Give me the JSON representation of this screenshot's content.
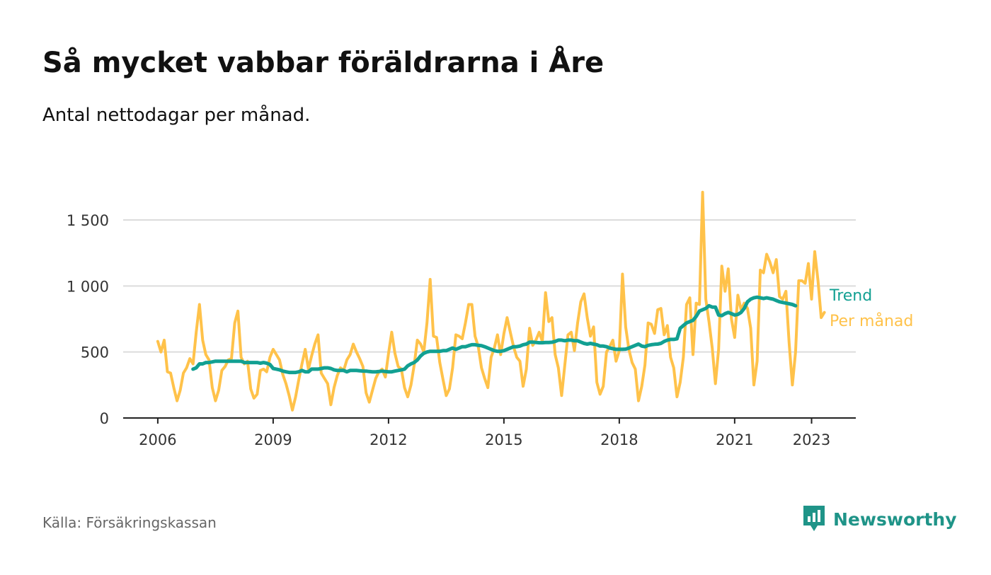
{
  "title": "Så mycket vabbar föräldrarna i Åre",
  "subtitle": "Antal nettodagar per månad.",
  "source": "Källa: Försäkringskassan",
  "brand": "Newsworthy",
  "colors": {
    "trend": "#12a092",
    "monthly": "#ffc24a",
    "grid": "#dcdcdc",
    "axis": "#222222",
    "brand": "#1f9488"
  },
  "chart_data": {
    "type": "line",
    "x_start": 2006.0,
    "x_step": 0.0833333,
    "xlim": [
      2005.1,
      2024.15
    ],
    "ylim": [
      0,
      1500
    ],
    "yticks": [
      0,
      500,
      1000,
      1500
    ],
    "ytick_labels": [
      "0",
      "500",
      "1 000",
      "1 500"
    ],
    "xticks": [
      2006,
      2009,
      2012,
      2015,
      2018,
      2021,
      2023
    ],
    "xtick_labels": [
      "2006",
      "2009",
      "2012",
      "2015",
      "2018",
      "2021",
      "2023"
    ],
    "series": [
      {
        "name": "Per månad",
        "start": 2006.0,
        "values": [
          580,
          500,
          590,
          350,
          340,
          230,
          130,
          210,
          340,
          380,
          450,
          410,
          650,
          860,
          590,
          480,
          440,
          230,
          130,
          210,
          360,
          390,
          440,
          450,
          720,
          810,
          460,
          410,
          430,
          220,
          150,
          180,
          360,
          370,
          350,
          460,
          520,
          480,
          440,
          330,
          260,
          170,
          60,
          160,
          290,
          410,
          520,
          370,
          470,
          560,
          630,
          340,
          300,
          260,
          100,
          230,
          320,
          380,
          360,
          440,
          480,
          560,
          500,
          450,
          390,
          190,
          120,
          210,
          300,
          350,
          370,
          310,
          490,
          650,
          490,
          390,
          370,
          230,
          160,
          250,
          400,
          590,
          560,
          500,
          720,
          1050,
          620,
          610,
          420,
          290,
          170,
          220,
          380,
          630,
          620,
          600,
          720,
          860,
          860,
          620,
          540,
          380,
          300,
          230,
          460,
          530,
          630,
          480,
          640,
          760,
          650,
          540,
          460,
          430,
          240,
          370,
          680,
          550,
          590,
          650,
          580,
          950,
          730,
          760,
          480,
          380,
          170,
          400,
          630,
          650,
          510,
          720,
          880,
          940,
          760,
          620,
          690,
          270,
          180,
          240,
          500,
          540,
          590,
          430,
          510,
          1090,
          690,
          520,
          420,
          370,
          130,
          240,
          400,
          720,
          710,
          640,
          820,
          830,
          630,
          700,
          460,
          380,
          160,
          270,
          460,
          860,
          910,
          480,
          870,
          860,
          1710,
          900,
          730,
          530,
          260,
          520,
          1150,
          960,
          1130,
          750,
          610,
          930,
          820,
          870,
          830,
          680,
          250,
          430,
          1120,
          1100,
          1240,
          1180,
          1100,
          1200,
          920,
          900,
          960,
          570,
          250,
          500,
          1040,
          1040,
          1020,
          1170,
          900,
          1260,
          1040,
          760,
          800
        ]
      },
      {
        "name": "Trend",
        "start": 2006.9167,
        "values": [
          370,
          380,
          410,
          410,
          420,
          420,
          425,
          430,
          430,
          430,
          430,
          430,
          430,
          430,
          430,
          430,
          420,
          420,
          420,
          420,
          420,
          415,
          420,
          415,
          405,
          375,
          370,
          365,
          355,
          350,
          345,
          345,
          345,
          350,
          360,
          350,
          350,
          370,
          370,
          370,
          375,
          380,
          380,
          375,
          365,
          360,
          360,
          360,
          350,
          360,
          360,
          360,
          358,
          355,
          355,
          352,
          350,
          350,
          352,
          355,
          352,
          350,
          350,
          355,
          360,
          365,
          370,
          395,
          410,
          420,
          440,
          470,
          490,
          500,
          505,
          505,
          505,
          505,
          510,
          510,
          520,
          530,
          520,
          530,
          540,
          540,
          548,
          555,
          555,
          550,
          548,
          540,
          530,
          520,
          510,
          505,
          505,
          510,
          520,
          530,
          540,
          540,
          545,
          555,
          560,
          575,
          575,
          572,
          570,
          570,
          572,
          572,
          574,
          580,
          590,
          590,
          585,
          590,
          590,
          585,
          585,
          575,
          565,
          560,
          565,
          560,
          555,
          545,
          545,
          540,
          530,
          525,
          520,
          520,
          520,
          522,
          530,
          540,
          550,
          560,
          545,
          540,
          550,
          555,
          558,
          560,
          565,
          580,
          590,
          595,
          595,
          600,
          680,
          700,
          720,
          730,
          740,
          770,
          810,
          820,
          830,
          850,
          840,
          840,
          780,
          775,
          790,
          800,
          790,
          780,
          785,
          800,
          830,
          880,
          900,
          910,
          915,
          910,
          905,
          910,
          905,
          900,
          890,
          880,
          875,
          870,
          865,
          860,
          850
        ]
      }
    ]
  }
}
